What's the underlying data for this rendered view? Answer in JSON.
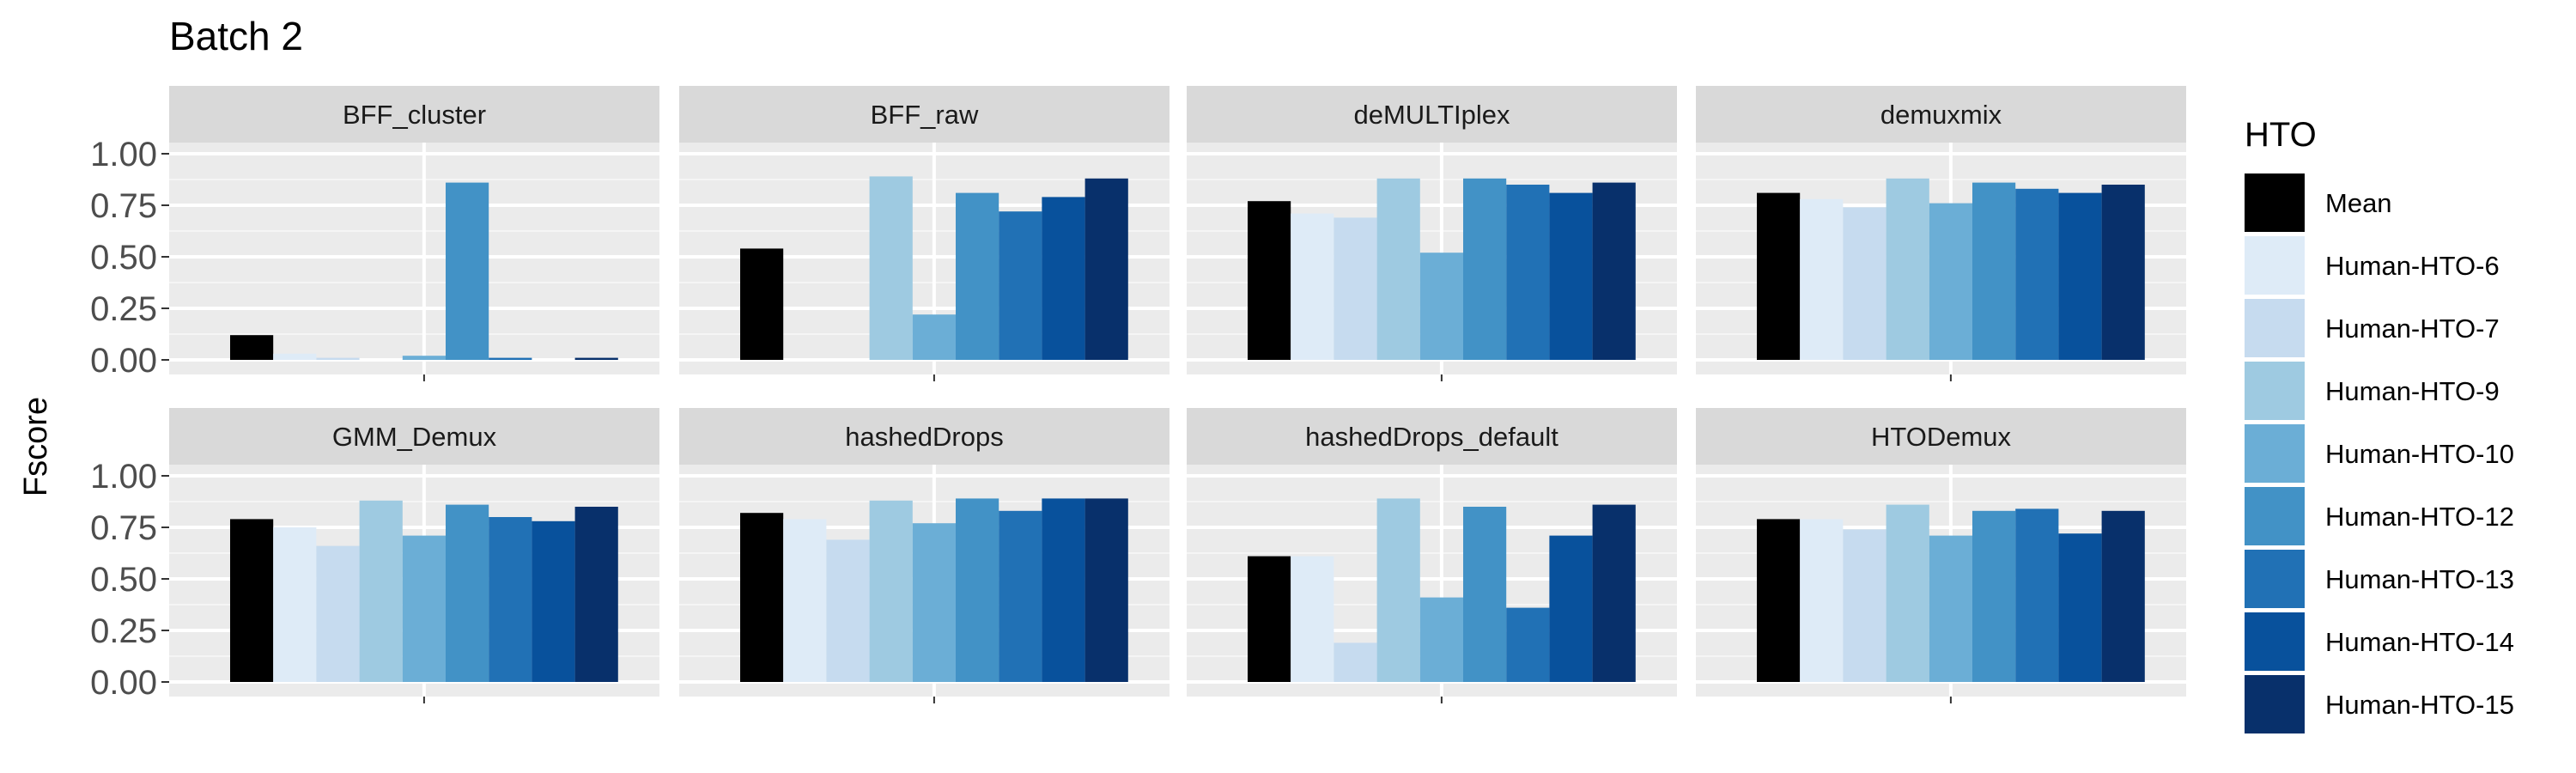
{
  "chart_data": {
    "type": "bar",
    "title": "Batch 2",
    "xlabel": "",
    "ylabel": "Fscore",
    "ylim": [
      0,
      1
    ],
    "yticks": [
      "0.00",
      "0.25",
      "0.50",
      "0.75",
      "1.00"
    ],
    "grid": true,
    "legend": {
      "title": "HTO",
      "position": "right",
      "entries": [
        "Mean",
        "Human-HTO-6",
        "Human-HTO-7",
        "Human-HTO-9",
        "Human-HTO-10",
        "Human-HTO-12",
        "Human-HTO-13",
        "Human-HTO-14",
        "Human-HTO-15"
      ],
      "colors": [
        "#000000",
        "#DEEBF7",
        "#C6DBEF",
        "#9ECAE1",
        "#6BAED6",
        "#4292C6",
        "#2171B5",
        "#08519C",
        "#08306B"
      ]
    },
    "categories": [
      "Mean",
      "Human-HTO-6",
      "Human-HTO-7",
      "Human-HTO-9",
      "Human-HTO-10",
      "Human-HTO-12",
      "Human-HTO-13",
      "Human-HTO-14",
      "Human-HTO-15"
    ],
    "panels": [
      {
        "name": "BFF_cluster",
        "values": [
          0.12,
          0.03,
          0.01,
          0,
          0.02,
          0.86,
          0.01,
          0,
          0.01
        ]
      },
      {
        "name": "BFF_raw",
        "values": [
          0.54,
          0,
          0,
          0.89,
          0.22,
          0.81,
          0.72,
          0.79,
          0.88
        ]
      },
      {
        "name": "deMULTIplex",
        "values": [
          0.77,
          0.71,
          0.69,
          0.88,
          0.52,
          0.88,
          0.85,
          0.81,
          0.86
        ]
      },
      {
        "name": "demuxmix",
        "values": [
          0.81,
          0.78,
          0.74,
          0.88,
          0.76,
          0.86,
          0.83,
          0.81,
          0.85
        ]
      },
      {
        "name": "GMM_Demux",
        "values": [
          0.79,
          0.75,
          0.66,
          0.88,
          0.71,
          0.86,
          0.8,
          0.78,
          0.85
        ]
      },
      {
        "name": "hashedDrops",
        "values": [
          0.82,
          0.79,
          0.69,
          0.88,
          0.77,
          0.89,
          0.83,
          0.89,
          0.89
        ]
      },
      {
        "name": "hashedDrops_default",
        "values": [
          0.61,
          0.61,
          0.19,
          0.89,
          0.41,
          0.85,
          0.36,
          0.71,
          0.86
        ]
      },
      {
        "name": "HTODemux",
        "values": [
          0.79,
          0.79,
          0.74,
          0.86,
          0.71,
          0.83,
          0.84,
          0.72,
          0.83
        ]
      }
    ]
  }
}
